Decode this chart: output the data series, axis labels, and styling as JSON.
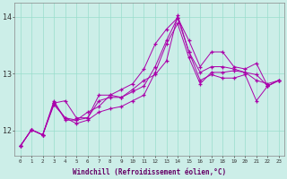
{
  "xlabel": "Windchill (Refroidissement éolien,°C)",
  "background_color": "#cceee8",
  "grid_color": "#99ddcc",
  "line_color": "#aa00aa",
  "x": [
    0,
    1,
    2,
    3,
    4,
    5,
    6,
    7,
    8,
    9,
    10,
    11,
    12,
    13,
    14,
    15,
    16,
    17,
    18,
    19,
    20,
    21,
    22,
    23
  ],
  "line1": [
    11.72,
    12.01,
    11.92,
    12.45,
    12.22,
    12.12,
    12.18,
    12.32,
    12.38,
    12.42,
    12.52,
    12.62,
    13.02,
    13.52,
    13.88,
    13.28,
    12.82,
    13.02,
    13.02,
    13.05,
    13.02,
    12.88,
    12.82,
    12.88
  ],
  "line2": [
    11.72,
    12.01,
    11.92,
    12.48,
    12.52,
    12.22,
    12.22,
    12.62,
    12.62,
    12.72,
    12.82,
    13.08,
    13.52,
    13.78,
    13.98,
    13.58,
    13.12,
    13.38,
    13.38,
    13.12,
    13.08,
    13.18,
    12.78,
    12.88
  ],
  "line3": [
    11.72,
    12.01,
    11.92,
    12.52,
    12.18,
    12.18,
    12.32,
    12.42,
    12.62,
    12.58,
    12.72,
    12.88,
    12.98,
    13.22,
    14.02,
    13.38,
    12.88,
    12.98,
    12.92,
    12.92,
    12.98,
    12.52,
    12.78,
    12.88
  ],
  "line4": [
    11.72,
    12.01,
    11.92,
    12.48,
    12.22,
    12.18,
    12.22,
    12.52,
    12.58,
    12.58,
    12.68,
    12.78,
    13.12,
    13.58,
    13.98,
    13.38,
    13.02,
    13.12,
    13.12,
    13.08,
    13.02,
    12.98,
    12.78,
    12.88
  ],
  "ylim": [
    11.55,
    14.25
  ],
  "yticks": [
    12,
    13,
    14
  ],
  "xticks": [
    0,
    1,
    2,
    3,
    4,
    5,
    6,
    7,
    8,
    9,
    10,
    11,
    12,
    13,
    14,
    15,
    16,
    17,
    18,
    19,
    20,
    21,
    22,
    23
  ]
}
